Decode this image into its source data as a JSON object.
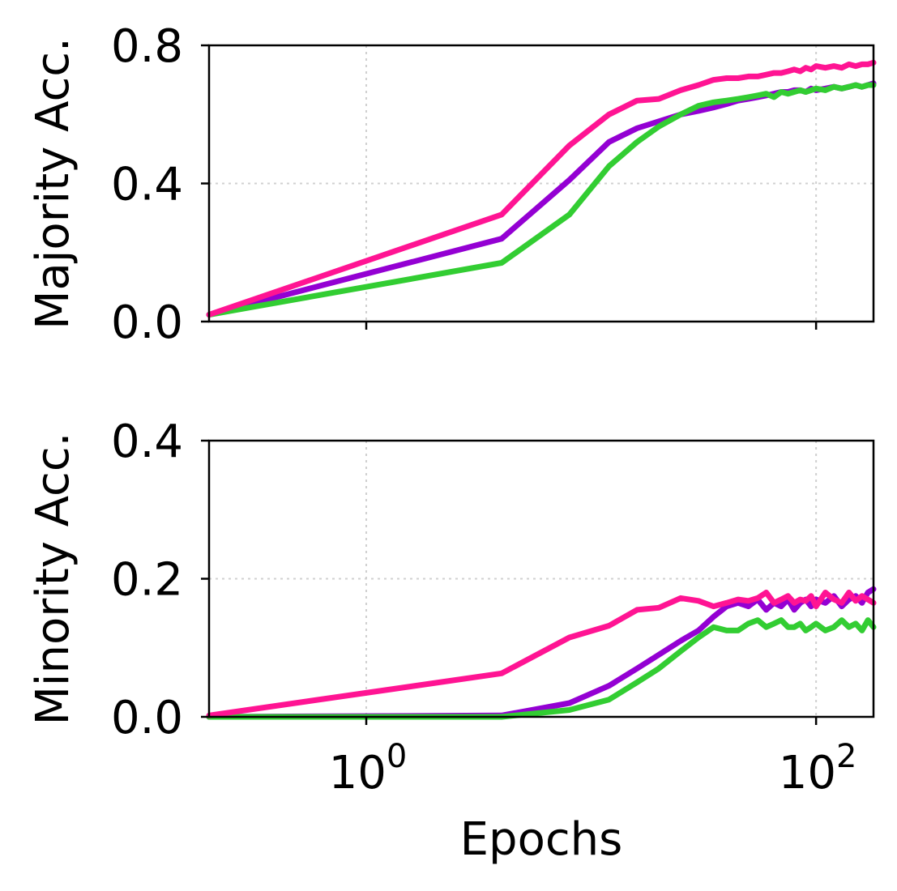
{
  "chart_data": [
    {
      "type": "line",
      "ylabel": "Majority Acc.",
      "ylim": [
        0,
        0.8
      ],
      "yticks": [
        0.0,
        0.4,
        0.8
      ],
      "yticklabels": [
        "0.0",
        "0.4",
        "0.8"
      ],
      "xscale": "log",
      "xlim": [
        0.2,
        180
      ],
      "grid": true,
      "series": [
        {
          "name": "purple",
          "color": "#9400d3",
          "x": [
            0.2,
            4,
            8,
            12,
            16,
            20,
            25,
            30,
            35,
            40,
            45,
            50,
            55,
            60,
            65,
            70,
            75,
            80,
            85,
            90,
            95,
            100,
            110,
            120,
            130,
            140,
            150,
            160,
            170,
            180
          ],
          "y": [
            0.02,
            0.24,
            0.41,
            0.52,
            0.56,
            0.58,
            0.6,
            0.61,
            0.62,
            0.63,
            0.64,
            0.645,
            0.65,
            0.655,
            0.66,
            0.665,
            0.665,
            0.67,
            0.67,
            0.665,
            0.675,
            0.67,
            0.675,
            0.68,
            0.675,
            0.68,
            0.685,
            0.68,
            0.685,
            0.69
          ]
        },
        {
          "name": "green",
          "color": "#32cd32",
          "x": [
            0.2,
            4,
            8,
            12,
            16,
            20,
            25,
            30,
            35,
            40,
            45,
            50,
            55,
            60,
            65,
            70,
            75,
            80,
            85,
            90,
            95,
            100,
            110,
            120,
            130,
            140,
            150,
            160,
            170,
            180
          ],
          "y": [
            0.02,
            0.17,
            0.31,
            0.45,
            0.52,
            0.565,
            0.6,
            0.625,
            0.635,
            0.64,
            0.645,
            0.65,
            0.655,
            0.66,
            0.65,
            0.665,
            0.66,
            0.665,
            0.67,
            0.665,
            0.67,
            0.675,
            0.67,
            0.68,
            0.675,
            0.68,
            0.685,
            0.68,
            0.685,
            0.685
          ]
        },
        {
          "name": "pink",
          "color": "#ff1493",
          "x": [
            0.2,
            4,
            8,
            12,
            16,
            20,
            25,
            30,
            35,
            40,
            45,
            50,
            55,
            60,
            65,
            70,
            75,
            80,
            85,
            90,
            95,
            100,
            110,
            120,
            130,
            140,
            150,
            160,
            170,
            180
          ],
          "y": [
            0.02,
            0.31,
            0.51,
            0.6,
            0.64,
            0.645,
            0.67,
            0.685,
            0.7,
            0.705,
            0.705,
            0.71,
            0.71,
            0.715,
            0.72,
            0.72,
            0.725,
            0.73,
            0.725,
            0.735,
            0.73,
            0.74,
            0.735,
            0.74,
            0.735,
            0.745,
            0.74,
            0.745,
            0.745,
            0.75
          ]
        }
      ]
    },
    {
      "type": "line",
      "ylabel": "Minority Acc.",
      "xlabel": "Epochs",
      "ylim": [
        0,
        0.4
      ],
      "yticks": [
        0.0,
        0.2,
        0.4
      ],
      "yticklabels": [
        "0.0",
        "0.2",
        "0.4"
      ],
      "xscale": "log",
      "xlim": [
        0.2,
        180
      ],
      "xticks": [
        1,
        100
      ],
      "xticklabels": [
        {
          "base": "10",
          "exp": "0"
        },
        {
          "base": "10",
          "exp": "2"
        }
      ],
      "grid": true,
      "series": [
        {
          "name": "purple",
          "color": "#9400d3",
          "x": [
            0.2,
            4,
            8,
            12,
            16,
            20,
            25,
            30,
            35,
            40,
            45,
            50,
            55,
            60,
            65,
            70,
            75,
            80,
            85,
            90,
            95,
            100,
            110,
            120,
            130,
            140,
            150,
            160,
            170,
            180
          ],
          "y": [
            0.0,
            0.002,
            0.02,
            0.045,
            0.07,
            0.09,
            0.11,
            0.125,
            0.145,
            0.16,
            0.165,
            0.16,
            0.17,
            0.155,
            0.165,
            0.16,
            0.17,
            0.155,
            0.165,
            0.17,
            0.16,
            0.17,
            0.165,
            0.175,
            0.16,
            0.17,
            0.175,
            0.165,
            0.18,
            0.185
          ]
        },
        {
          "name": "green",
          "color": "#32cd32",
          "x": [
            0.2,
            4,
            8,
            12,
            16,
            20,
            25,
            30,
            35,
            40,
            45,
            50,
            55,
            60,
            65,
            70,
            75,
            80,
            85,
            90,
            95,
            100,
            110,
            120,
            130,
            140,
            150,
            160,
            170,
            180
          ],
          "y": [
            0.0,
            0.0,
            0.01,
            0.025,
            0.05,
            0.07,
            0.095,
            0.115,
            0.13,
            0.125,
            0.125,
            0.135,
            0.14,
            0.13,
            0.135,
            0.14,
            0.13,
            0.13,
            0.135,
            0.125,
            0.13,
            0.135,
            0.125,
            0.13,
            0.14,
            0.13,
            0.135,
            0.125,
            0.14,
            0.13
          ]
        },
        {
          "name": "pink",
          "color": "#ff1493",
          "x": [
            0.2,
            4,
            8,
            12,
            16,
            20,
            25,
            30,
            35,
            40,
            45,
            50,
            55,
            60,
            65,
            70,
            75,
            80,
            85,
            90,
            95,
            100,
            110,
            120,
            130,
            140,
            150,
            160,
            170,
            180
          ],
          "y": [
            0.002,
            0.063,
            0.115,
            0.132,
            0.155,
            0.158,
            0.172,
            0.168,
            0.16,
            0.165,
            0.17,
            0.168,
            0.172,
            0.18,
            0.165,
            0.17,
            0.175,
            0.165,
            0.17,
            0.168,
            0.175,
            0.16,
            0.18,
            0.17,
            0.165,
            0.18,
            0.168,
            0.175,
            0.17,
            0.165
          ]
        }
      ]
    }
  ]
}
